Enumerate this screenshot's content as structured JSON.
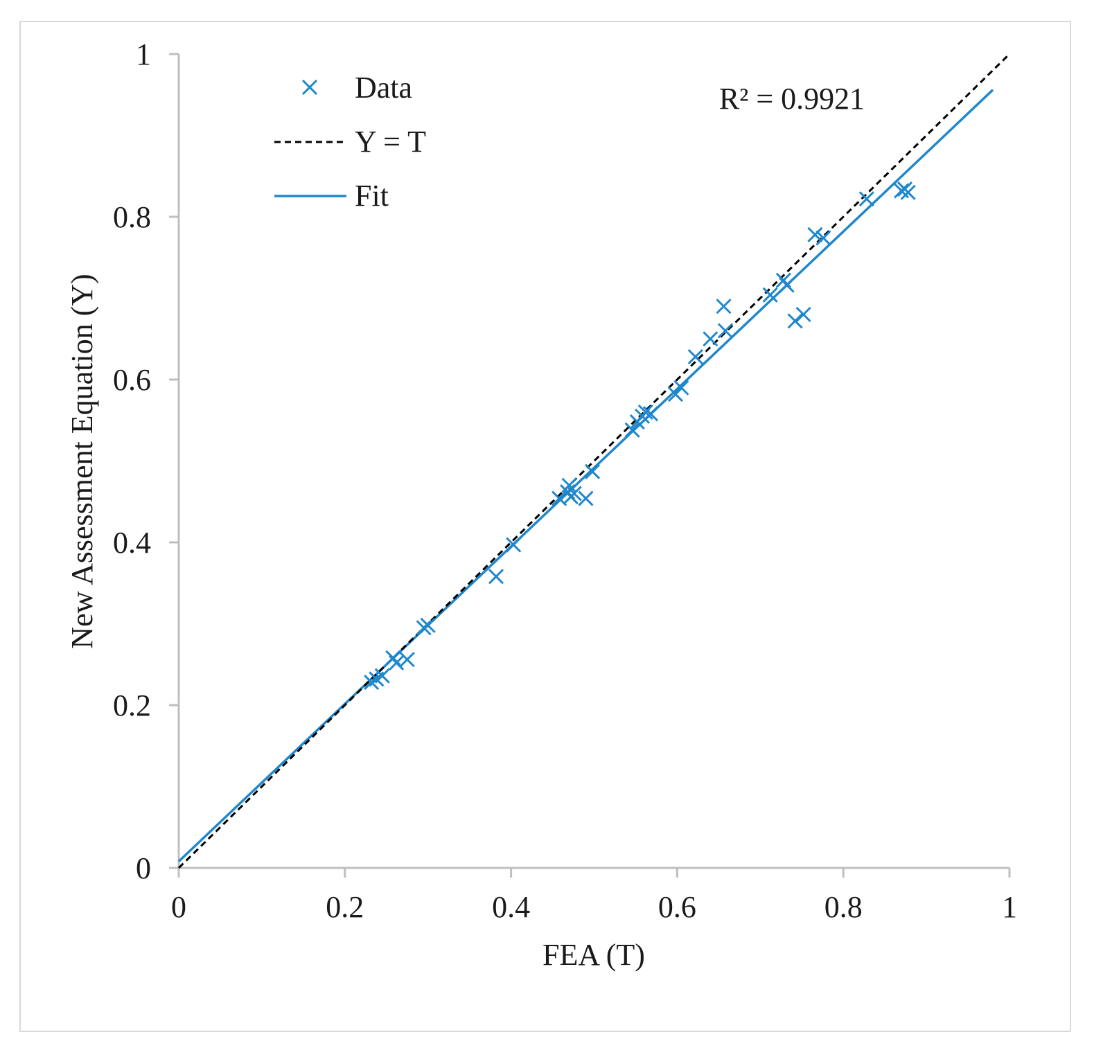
{
  "chart_data": {
    "type": "scatter",
    "xlabel": "FEA (T)",
    "ylabel": "New Assessment Equation (Y)",
    "xlim": [
      0,
      1
    ],
    "ylim": [
      0,
      1
    ],
    "x_ticks": [
      "0",
      "0.2",
      "0.4",
      "0.6",
      "0.8",
      "1"
    ],
    "y_ticks": [
      "0",
      "0.2",
      "0.4",
      "0.6",
      "0.8",
      "1"
    ],
    "grid": false,
    "legend_position": "top-left",
    "annotation": "R² = 0.9921",
    "colors": {
      "data": "#1f87cc",
      "fit": "#1f87cc",
      "identity": "#000000",
      "axis": "#bfbfbf"
    },
    "series": [
      {
        "name": "Data",
        "kind": "scatter-x",
        "points": [
          [
            0.232,
            0.228
          ],
          [
            0.238,
            0.232
          ],
          [
            0.245,
            0.236
          ],
          [
            0.258,
            0.258
          ],
          [
            0.262,
            0.252
          ],
          [
            0.275,
            0.256
          ],
          [
            0.295,
            0.295
          ],
          [
            0.3,
            0.298
          ],
          [
            0.382,
            0.358
          ],
          [
            0.403,
            0.397
          ],
          [
            0.458,
            0.454
          ],
          [
            0.468,
            0.462
          ],
          [
            0.47,
            0.47
          ],
          [
            0.472,
            0.456
          ],
          [
            0.476,
            0.46
          ],
          [
            0.49,
            0.454
          ],
          [
            0.498,
            0.487
          ],
          [
            0.546,
            0.538
          ],
          [
            0.552,
            0.548
          ],
          [
            0.558,
            0.555
          ],
          [
            0.562,
            0.56
          ],
          [
            0.568,
            0.558
          ],
          [
            0.598,
            0.582
          ],
          [
            0.605,
            0.59
          ],
          [
            0.622,
            0.628
          ],
          [
            0.64,
            0.65
          ],
          [
            0.656,
            0.69
          ],
          [
            0.658,
            0.66
          ],
          [
            0.712,
            0.704
          ],
          [
            0.728,
            0.722
          ],
          [
            0.732,
            0.716
          ],
          [
            0.742,
            0.672
          ],
          [
            0.752,
            0.68
          ],
          [
            0.766,
            0.778
          ],
          [
            0.776,
            0.774
          ],
          [
            0.828,
            0.822
          ],
          [
            0.87,
            0.832
          ],
          [
            0.874,
            0.834
          ],
          [
            0.878,
            0.83
          ]
        ]
      },
      {
        "name": "Y = T",
        "kind": "line-dashed",
        "x": [
          0,
          1
        ],
        "y": [
          0,
          1
        ]
      },
      {
        "name": "Fit",
        "kind": "line",
        "x": [
          0,
          0.98
        ],
        "y": [
          0.008,
          0.956
        ]
      }
    ]
  }
}
